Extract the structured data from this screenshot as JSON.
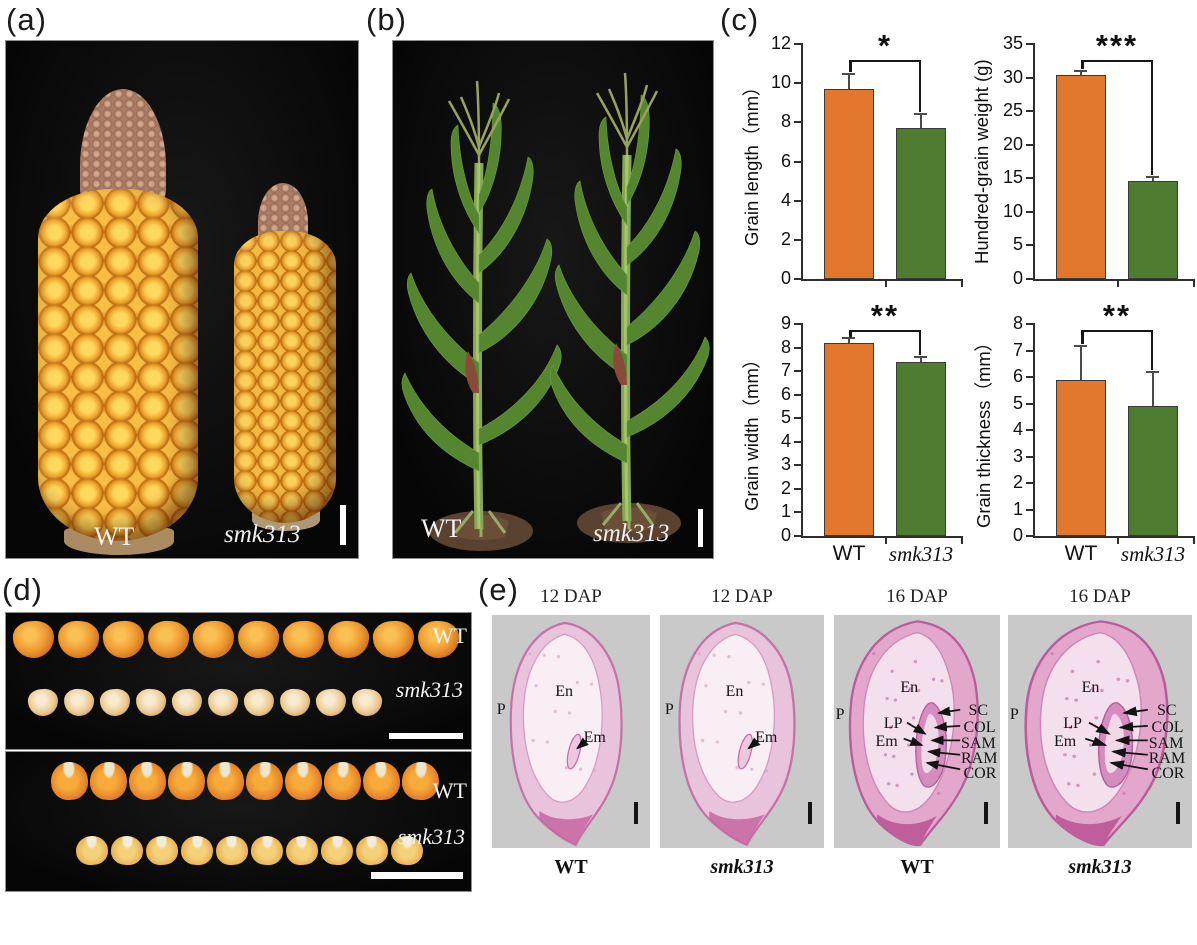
{
  "panels": {
    "a": {
      "tag": "(a)",
      "wt_label": "WT",
      "mutant_label": "smk313"
    },
    "b": {
      "tag": "(b)",
      "wt_label": "WT",
      "mutant_label": "smk313"
    },
    "c": {
      "tag": "(c)"
    },
    "d": {
      "tag": "(d)",
      "boxes": [
        {
          "rows": [
            {
              "label": "WT",
              "italic": false,
              "kernel_count": 10,
              "style": "side-wt"
            },
            {
              "label": "smk313",
              "italic": true,
              "kernel_count": 10,
              "style": "side-mut"
            }
          ]
        },
        {
          "rows": [
            {
              "label": "WT",
              "italic": false,
              "kernel_count": 10,
              "style": "crown-wt"
            },
            {
              "label": "smk313",
              "italic": true,
              "kernel_count": 10,
              "style": "crown-mut"
            }
          ]
        }
      ]
    },
    "e": {
      "tag": "(e)",
      "sections": [
        {
          "header": "12 DAP",
          "caption": "WT",
          "caption_italic": false,
          "stage": "12dap",
          "labels": [
            "P",
            "En",
            "Em"
          ]
        },
        {
          "header": "12 DAP",
          "caption": "smk313",
          "caption_italic": true,
          "stage": "12dap",
          "labels": [
            "P",
            "En",
            "Em"
          ]
        },
        {
          "header": "16 DAP",
          "caption": "WT",
          "caption_italic": false,
          "stage": "16dap",
          "labels": [
            "P",
            "En",
            "LP",
            "Em",
            "SC",
            "COL",
            "SAM",
            "RAM",
            "COR"
          ]
        },
        {
          "header": "16 DAP",
          "caption": "smk313",
          "caption_italic": true,
          "stage": "16dap",
          "labels": [
            "P",
            "En",
            "LP",
            "Em",
            "SC",
            "COL",
            "SAM",
            "RAM",
            "COR"
          ]
        }
      ]
    }
  },
  "chart_data": [
    {
      "type": "bar",
      "title": "",
      "ylabel": "Grain length（mm）",
      "xlabel": "",
      "ylim": [
        0,
        12
      ],
      "ystep": 2,
      "sig": "*",
      "x_labels_shown": false,
      "grid": false,
      "categories": [
        "WT",
        "smk313"
      ],
      "bars": [
        {
          "category": "WT",
          "value": 9.7,
          "error": 0.7,
          "color": "#E2772E"
        },
        {
          "category": "smk313",
          "value": 7.7,
          "error": 0.7,
          "color": "#4E7D32"
        }
      ]
    },
    {
      "type": "bar",
      "title": "",
      "ylabel": "Hundred-grain weight (g)",
      "xlabel": "",
      "ylim": [
        0,
        35
      ],
      "ystep": 5,
      "sig": "***",
      "x_labels_shown": false,
      "grid": false,
      "categories": [
        "WT",
        "smk313"
      ],
      "bars": [
        {
          "category": "WT",
          "value": 30.4,
          "error": 0.4,
          "color": "#E2772E"
        },
        {
          "category": "smk313",
          "value": 14.6,
          "error": 0.4,
          "color": "#4E7D32"
        }
      ]
    },
    {
      "type": "bar",
      "title": "",
      "ylabel": "Grain width（mm）",
      "xlabel": "",
      "ylim": [
        0,
        9
      ],
      "ystep": 1,
      "sig": "**",
      "x_labels_shown": true,
      "grid": false,
      "categories": [
        "WT",
        "smk313"
      ],
      "bars": [
        {
          "category": "WT",
          "value": 8.2,
          "error": 0.15,
          "color": "#E2772E"
        },
        {
          "category": "smk313",
          "value": 7.4,
          "error": 0.15,
          "color": "#4E7D32"
        }
      ]
    },
    {
      "type": "bar",
      "title": "",
      "ylabel": "Grain thickness（mm）",
      "xlabel": "",
      "ylim": [
        0,
        8
      ],
      "ystep": 1,
      "sig": "**",
      "x_labels_shown": true,
      "grid": false,
      "categories": [
        "WT",
        "smk313"
      ],
      "bars": [
        {
          "category": "WT",
          "value": 5.9,
          "error": 1.25,
          "color": "#E2772E"
        },
        {
          "category": "smk313",
          "value": 4.9,
          "error": 1.25,
          "color": "#4E7D32"
        }
      ]
    }
  ],
  "colors": {
    "wt_bar": "#E2772E",
    "mutant_bar": "#4E7D32",
    "axis": "#2E2E2E",
    "histology_background": "#C9C9C9",
    "photo_background": "#0B0B0B",
    "section_pink": "#E3A7CC",
    "section_light": "#F6E9F1"
  }
}
